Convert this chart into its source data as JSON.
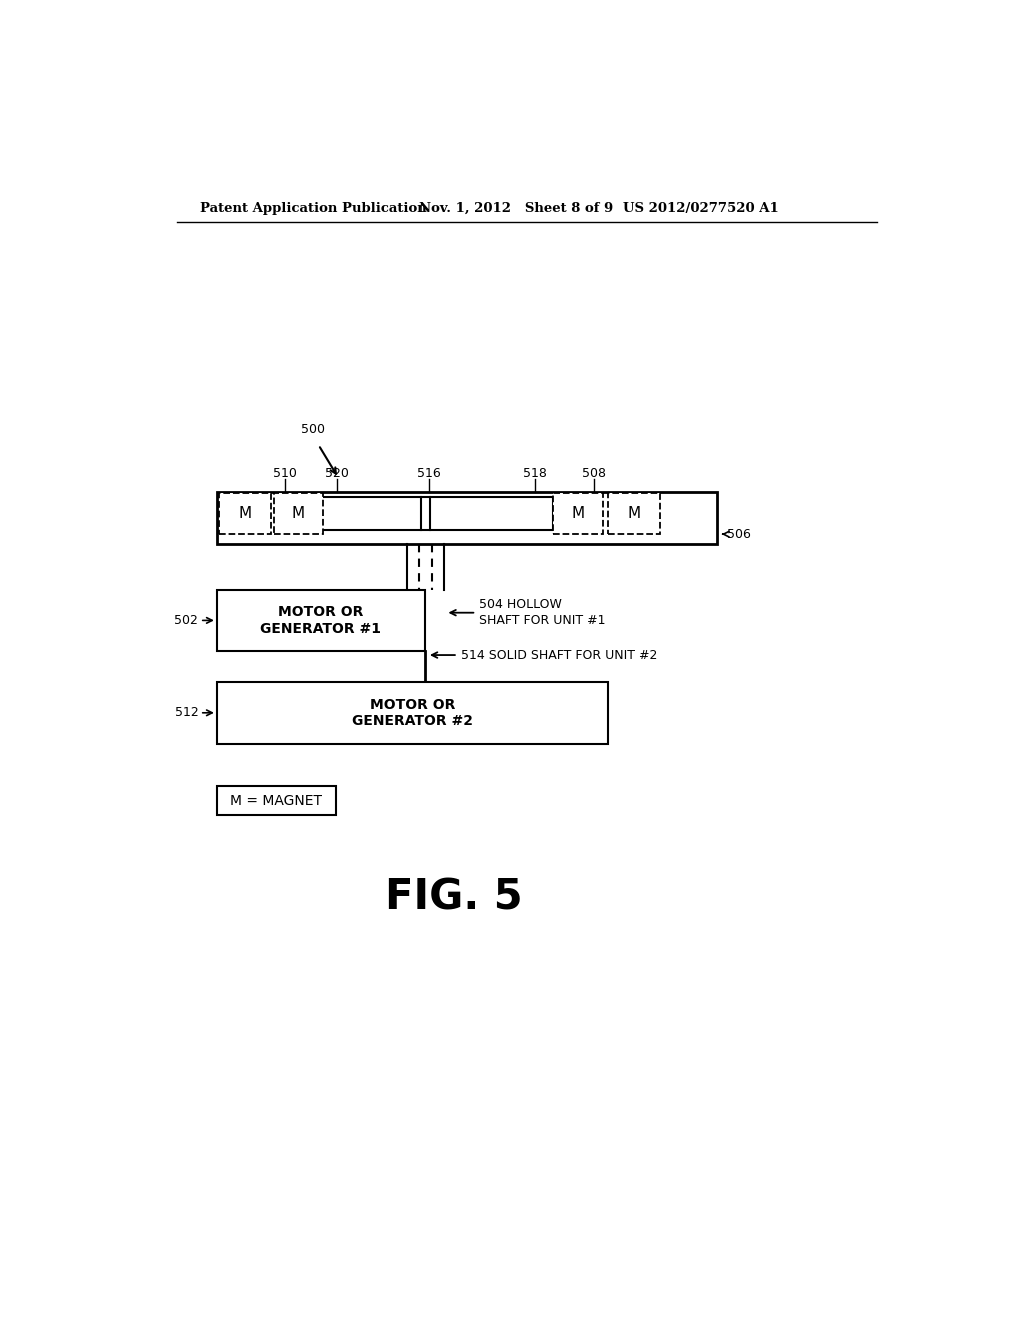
{
  "bg_color": "#ffffff",
  "header_left": "Patent Application Publication",
  "header_mid": "Nov. 1, 2012   Sheet 8 of 9",
  "header_right": "US 2012/0277520 A1",
  "fig_label": "FIG. 5",
  "label_500": "500",
  "label_510": "510",
  "label_520": "520",
  "label_516": "516",
  "label_518": "518",
  "label_508": "508",
  "label_506": "506",
  "label_502": "502",
  "label_512": "512",
  "label_504_text": "504 HOLLOW\nSHAFT FOR UNIT #1",
  "label_514_text": "514 SOLID SHAFT FOR UNIT #2",
  "box502_text": "MOTOR OR\nGENERATOR #1",
  "box512_text": "MOTOR OR\nGENERATOR #2",
  "legend_text": "M = MAGNET",
  "magnet_label": "M"
}
